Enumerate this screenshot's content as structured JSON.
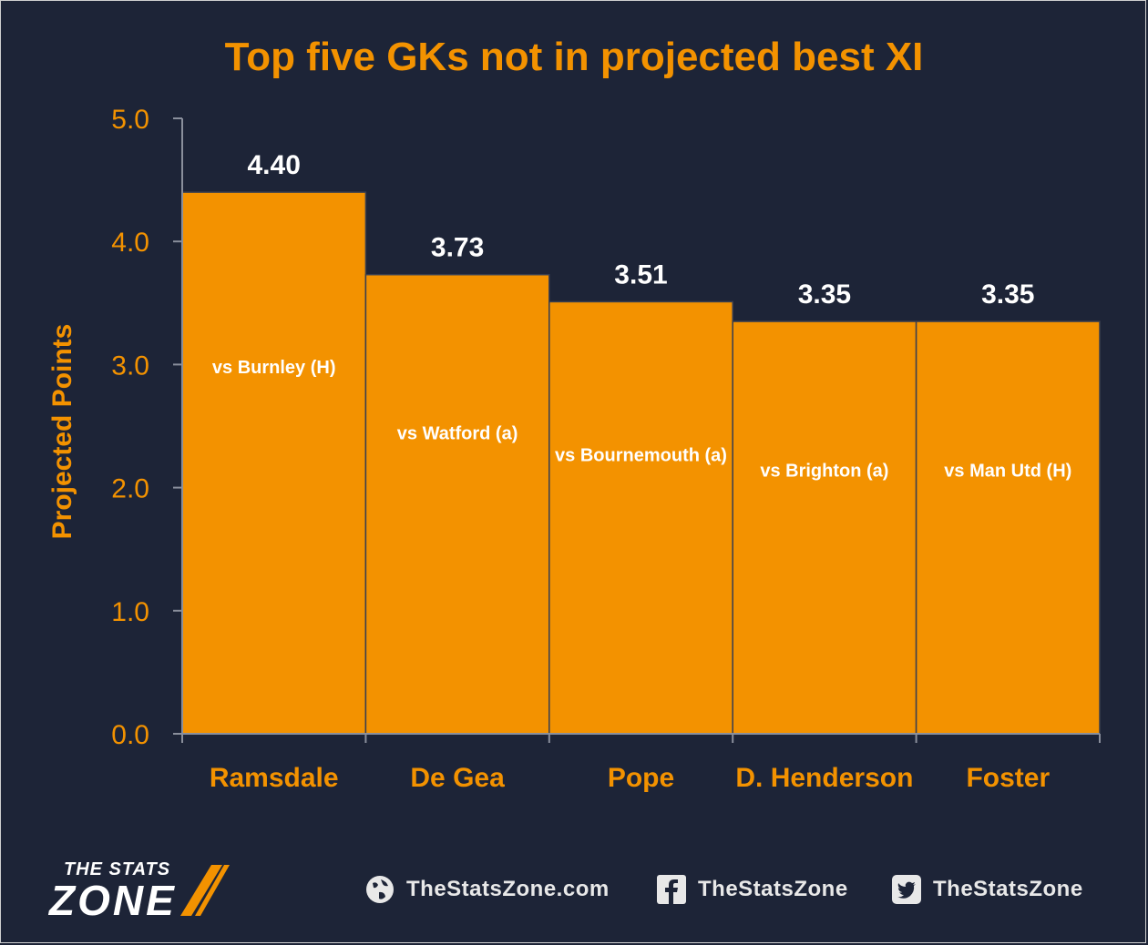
{
  "chart_data": {
    "type": "bar",
    "title": "Top five GKs not in projected best XI",
    "ylabel": "Projected Points",
    "xlabel": "",
    "ylim": [
      0,
      5
    ],
    "yticks": [
      "0.0",
      "1.0",
      "2.0",
      "3.0",
      "4.0",
      "5.0"
    ],
    "categories": [
      "Ramsdale",
      "De Gea",
      "Pope",
      "D. Henderson",
      "Foster"
    ],
    "values": [
      4.4,
      3.73,
      3.51,
      3.35,
      3.35
    ],
    "value_labels": [
      "4.40",
      "3.73",
      "3.51",
      "3.35",
      "3.35"
    ],
    "fixtures": [
      "vs Burnley (H)",
      "vs Watford (a)",
      "vs Bournemouth (a)",
      "vs Brighton (a)",
      "vs Man Utd (H)"
    ],
    "bar_color": "#f39200",
    "grid": false
  },
  "footer": {
    "logo_top": "THE STATS",
    "logo_bottom": "ZONE",
    "website": "TheStatsZone.com",
    "facebook": "TheStatsZone",
    "twitter": "TheStatsZone"
  },
  "colors": {
    "background": "#1d2437",
    "accent": "#f39200",
    "text": "#ffffff"
  },
  "icons": [
    "globe-icon",
    "facebook-icon",
    "twitter-icon"
  ]
}
